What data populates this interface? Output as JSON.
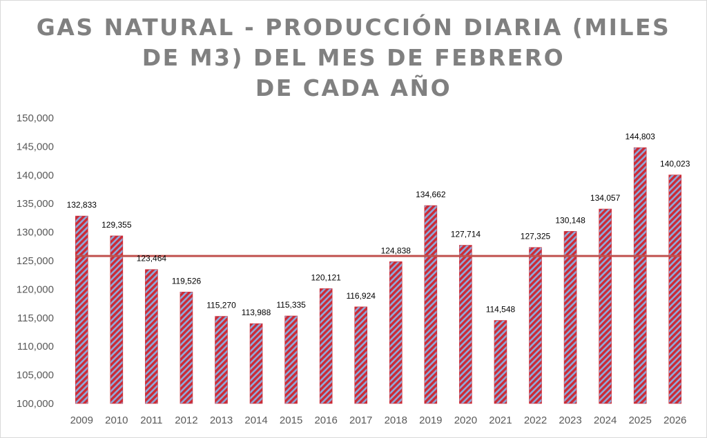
{
  "chart_data": {
    "type": "bar",
    "title_lines": [
      "GAS NATURAL - PRODUCCIÓN DIARIA (MILES",
      "DE M3) DEL MES DE FEBRERO",
      "DE CADA AÑO"
    ],
    "categories": [
      "2009",
      "2010",
      "2011",
      "2012",
      "2013",
      "2014",
      "2015",
      "2016",
      "2017",
      "2018",
      "2019",
      "2020",
      "2021",
      "2022",
      "2023",
      "2024",
      "2025",
      "2026"
    ],
    "values": [
      132833,
      129355,
      123464,
      119526,
      115270,
      113988,
      115335,
      120121,
      116924,
      124838,
      134662,
      127714,
      114548,
      127325,
      130148,
      134057,
      144803,
      140023
    ],
    "data_labels": [
      "132,833",
      "129,355",
      "123,464",
      "119,526",
      "115,270",
      "113,988",
      "115,335",
      "120,121",
      "116,924",
      "124,838",
      "134,662",
      "127,714",
      "114,548",
      "127,325",
      "130,148",
      "134,057",
      "144,803",
      "140,023"
    ],
    "ylim": [
      100000,
      150000
    ],
    "y_ticks": [
      100000,
      105000,
      110000,
      115000,
      120000,
      125000,
      130000,
      135000,
      140000,
      145000,
      150000
    ],
    "y_tick_labels": [
      "100,000",
      "105,000",
      "110,000",
      "115,000",
      "120,000",
      "125,000",
      "130,000",
      "135,000",
      "140,000",
      "145,000",
      "150,000"
    ],
    "average_line": 125826,
    "xlabel": "",
    "ylabel": "",
    "grid": false,
    "legend": "none",
    "colors": {
      "bar_stripe_red": "#cc2b36",
      "bar_stripe_blue": "#8ea9db",
      "average_line": "#c0504d",
      "tick_text": "#595959",
      "title": "#808080"
    }
  }
}
